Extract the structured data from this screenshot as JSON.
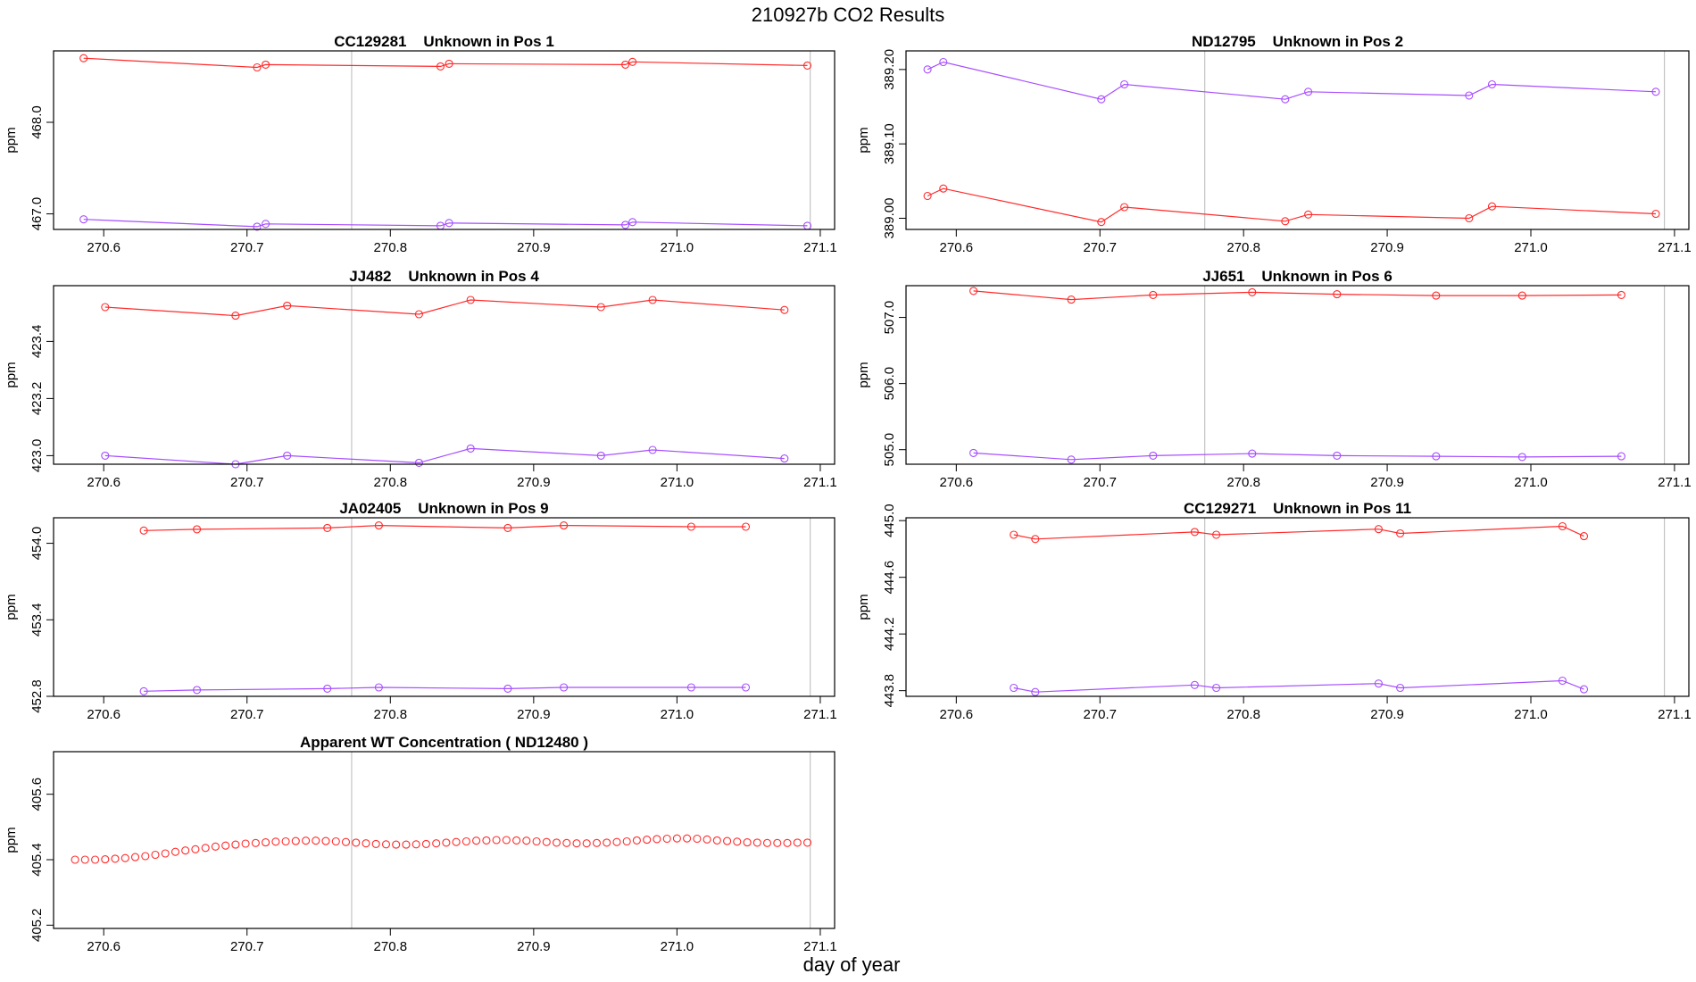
{
  "title": "210927b  CO2 Results",
  "xlabel": "day of year",
  "colors": {
    "series1": "#ff2a2a",
    "series2": "#a64dff",
    "vline": "#b8b8b8",
    "axis": "#000000"
  },
  "chart_data": [
    {
      "type": "line",
      "title": "CC129281    Unknown in Pos 1",
      "ylabel": "ppm",
      "xlim": [
        270.565,
        271.11
      ],
      "ylim": [
        466.83,
        468.78
      ],
      "xticks": [
        270.6,
        270.7,
        270.8,
        270.9,
        271.0,
        271.1
      ],
      "xtick_labels": [
        "270.6",
        "270.7",
        "270.8",
        "270.9",
        "271.0",
        "271.1"
      ],
      "yticks": [
        467.0,
        468.0
      ],
      "ytick_labels": [
        "467.0",
        "468.0"
      ],
      "vlines": [
        270.773,
        271.093
      ],
      "series": [
        {
          "color": "#ff2a2a",
          "x": [
            270.586,
            270.707,
            270.713,
            270.835,
            270.841,
            270.964,
            270.969,
            271.091
          ],
          "y": [
            468.7,
            468.6,
            468.63,
            468.61,
            468.64,
            468.63,
            468.66,
            468.62
          ]
        },
        {
          "color": "#a64dff",
          "x": [
            270.586,
            270.707,
            270.713,
            270.835,
            270.841,
            270.964,
            270.969,
            271.091
          ],
          "y": [
            466.94,
            466.86,
            466.89,
            466.87,
            466.9,
            466.88,
            466.91,
            466.87
          ]
        }
      ]
    },
    {
      "type": "line",
      "title": "ND12795    Unknown in Pos 2",
      "ylabel": "ppm",
      "xlim": [
        270.565,
        271.11
      ],
      "ylim": [
        388.985,
        389.225
      ],
      "xticks": [
        270.6,
        270.7,
        270.8,
        270.9,
        271.0,
        271.1
      ],
      "xtick_labels": [
        "270.6",
        "270.7",
        "270.8",
        "270.9",
        "271.0",
        "271.1"
      ],
      "yticks": [
        389.0,
        389.1,
        389.2
      ],
      "ytick_labels": [
        "389.00",
        "389.10",
        "389.20"
      ],
      "vlines": [
        270.773,
        271.093
      ],
      "series": [
        {
          "color": "#a64dff",
          "x": [
            270.58,
            270.591,
            270.701,
            270.717,
            270.829,
            270.845,
            270.957,
            270.973,
            271.087
          ],
          "y": [
            389.2,
            389.21,
            389.16,
            389.18,
            389.16,
            389.17,
            389.165,
            389.18,
            389.17
          ]
        },
        {
          "color": "#ff2a2a",
          "x": [
            270.58,
            270.591,
            270.701,
            270.717,
            270.829,
            270.845,
            270.957,
            270.973,
            271.087
          ],
          "y": [
            389.03,
            389.04,
            388.995,
            389.015,
            388.996,
            389.005,
            389.0,
            389.016,
            389.006
          ]
        }
      ]
    },
    {
      "type": "line",
      "title": "JJ482    Unknown in Pos 4",
      "ylabel": "ppm",
      "xlim": [
        270.565,
        271.11
      ],
      "ylim": [
        422.97,
        423.595
      ],
      "xticks": [
        270.6,
        270.7,
        270.8,
        270.9,
        271.0,
        271.1
      ],
      "xtick_labels": [
        "270.6",
        "270.7",
        "270.8",
        "270.9",
        "271.0",
        "271.1"
      ],
      "yticks": [
        423.0,
        423.2,
        423.4
      ],
      "ytick_labels": [
        "423.0",
        "423.2",
        "423.4"
      ],
      "vlines": [
        270.773
      ],
      "series": [
        {
          "color": "#ff2a2a",
          "x": [
            270.601,
            270.692,
            270.728,
            270.82,
            270.856,
            270.947,
            270.983,
            271.075
          ],
          "y": [
            423.52,
            423.49,
            423.525,
            423.495,
            423.545,
            423.52,
            423.545,
            423.51
          ]
        },
        {
          "color": "#a64dff",
          "x": [
            270.601,
            270.692,
            270.728,
            270.82,
            270.856,
            270.947,
            270.983,
            271.075
          ],
          "y": [
            423.0,
            422.97,
            423.0,
            422.975,
            423.025,
            423.0,
            423.02,
            422.99
          ]
        }
      ]
    },
    {
      "type": "line",
      "title": "JJ651    Unknown in Pos 6",
      "ylabel": "ppm",
      "xlim": [
        270.565,
        271.11
      ],
      "ylim": [
        504.78,
        507.48
      ],
      "xticks": [
        270.6,
        270.7,
        270.8,
        270.9,
        271.0,
        271.1
      ],
      "xtick_labels": [
        "270.6",
        "270.7",
        "270.8",
        "270.9",
        "271.0",
        "271.1"
      ],
      "yticks": [
        505.0,
        506.0,
        507.0
      ],
      "ytick_labels": [
        "505.0",
        "506.0",
        "507.0"
      ],
      "vlines": [
        270.773,
        271.093
      ],
      "series": [
        {
          "color": "#ff2a2a",
          "x": [
            270.612,
            270.68,
            270.737,
            270.806,
            270.865,
            270.934,
            270.994,
            271.063
          ],
          "y": [
            507.4,
            507.27,
            507.34,
            507.38,
            507.35,
            507.33,
            507.33,
            507.34
          ]
        },
        {
          "color": "#a64dff",
          "x": [
            270.612,
            270.68,
            270.737,
            270.806,
            270.865,
            270.934,
            270.994,
            271.063
          ],
          "y": [
            504.95,
            504.85,
            504.91,
            504.94,
            504.91,
            504.9,
            504.89,
            504.9
          ]
        }
      ]
    },
    {
      "type": "line",
      "title": "JA02405    Unknown in Pos 9",
      "ylabel": "ppm",
      "xlim": [
        270.565,
        271.11
      ],
      "ylim": [
        452.8,
        454.2
      ],
      "xticks": [
        270.6,
        270.7,
        270.8,
        270.9,
        271.0,
        271.1
      ],
      "xtick_labels": [
        "270.6",
        "270.7",
        "270.8",
        "270.9",
        "271.0",
        "271.1"
      ],
      "yticks": [
        452.8,
        453.4,
        454.0
      ],
      "ytick_labels": [
        "452.8",
        "453.4",
        "454.0"
      ],
      "vlines": [
        270.773,
        271.093
      ],
      "series": [
        {
          "color": "#ff2a2a",
          "x": [
            270.628,
            270.665,
            270.756,
            270.792,
            270.882,
            270.921,
            271.01,
            271.048
          ],
          "y": [
            454.1,
            454.11,
            454.12,
            454.14,
            454.12,
            454.14,
            454.13,
            454.13
          ]
        },
        {
          "color": "#a64dff",
          "x": [
            270.628,
            270.665,
            270.756,
            270.792,
            270.882,
            270.921,
            271.01,
            271.048
          ],
          "y": [
            452.84,
            452.85,
            452.86,
            452.87,
            452.86,
            452.87,
            452.87,
            452.87
          ]
        }
      ]
    },
    {
      "type": "line",
      "title": "CC129271    Unknown in Pos 11",
      "ylabel": "ppm",
      "xlim": [
        270.565,
        271.11
      ],
      "ylim": [
        443.76,
        445.02
      ],
      "xticks": [
        270.6,
        270.7,
        270.8,
        270.9,
        271.0,
        271.1
      ],
      "xtick_labels": [
        "270.6",
        "270.7",
        "270.8",
        "270.9",
        "271.0",
        "271.1"
      ],
      "yticks": [
        443.8,
        444.2,
        444.6,
        445.0
      ],
      "ytick_labels": [
        "443.8",
        "444.2",
        "444.6",
        "445.0"
      ],
      "vlines": [
        270.773,
        271.093
      ],
      "series": [
        {
          "color": "#ff2a2a",
          "x": [
            270.64,
            270.655,
            270.766,
            270.781,
            270.894,
            270.909,
            271.022,
            271.037
          ],
          "y": [
            444.9,
            444.87,
            444.92,
            444.9,
            444.94,
            444.91,
            444.96,
            444.89
          ]
        },
        {
          "color": "#a64dff",
          "x": [
            270.64,
            270.655,
            270.766,
            270.781,
            270.894,
            270.909,
            271.022,
            271.037
          ],
          "y": [
            443.82,
            443.79,
            443.84,
            443.82,
            443.85,
            443.82,
            443.87,
            443.81
          ]
        }
      ]
    },
    {
      "type": "scatter",
      "title": "Apparent WT Concentration ( ND12480 )",
      "ylabel": "ppm",
      "xlim": [
        270.565,
        271.11
      ],
      "ylim": [
        405.19,
        405.73
      ],
      "xticks": [
        270.6,
        270.7,
        270.8,
        270.9,
        271.0,
        271.1
      ],
      "xtick_labels": [
        "270.6",
        "270.7",
        "270.8",
        "270.9",
        "271.0",
        "271.1"
      ],
      "yticks": [
        405.2,
        405.4,
        405.6
      ],
      "ytick_labels": [
        "405.2",
        "405.4",
        "405.6"
      ],
      "vlines": [
        270.773,
        271.093
      ],
      "series": [
        {
          "color": "#ff2a2a",
          "x": [
            270.58,
            270.587,
            270.594,
            270.601,
            270.608,
            270.615,
            270.622,
            270.629,
            270.636,
            270.643,
            270.65,
            270.657,
            270.664,
            270.671,
            270.678,
            270.685,
            270.692,
            270.699,
            270.706,
            270.713,
            270.72,
            270.727,
            270.734,
            270.741,
            270.748,
            270.755,
            270.762,
            270.769,
            270.776,
            270.783,
            270.79,
            270.797,
            270.804,
            270.811,
            270.818,
            270.825,
            270.832,
            270.839,
            270.846,
            270.853,
            270.86,
            270.867,
            270.874,
            270.881,
            270.888,
            270.895,
            270.902,
            270.909,
            270.916,
            270.923,
            270.93,
            270.937,
            270.944,
            270.951,
            270.958,
            270.965,
            270.972,
            270.979,
            270.986,
            270.993,
            271.0,
            271.007,
            271.014,
            271.021,
            271.028,
            271.035,
            271.042,
            271.049,
            271.056,
            271.063,
            271.07,
            271.077,
            271.084,
            271.091
          ],
          "y": [
            405.4,
            405.4,
            405.4,
            405.401,
            405.403,
            405.405,
            405.408,
            405.411,
            405.415,
            405.419,
            405.424,
            405.428,
            405.432,
            405.436,
            405.44,
            405.443,
            405.446,
            405.449,
            405.451,
            405.453,
            405.455,
            405.456,
            405.457,
            405.458,
            405.458,
            405.457,
            405.456,
            405.454,
            405.452,
            405.45,
            405.448,
            405.447,
            405.446,
            405.446,
            405.447,
            405.448,
            405.45,
            405.452,
            405.454,
            405.456,
            405.458,
            405.459,
            405.46,
            405.46,
            405.459,
            405.458,
            405.456,
            405.454,
            405.452,
            405.451,
            405.45,
            405.45,
            405.451,
            405.452,
            405.454,
            405.456,
            405.459,
            405.461,
            405.463,
            405.464,
            405.465,
            405.465,
            405.464,
            405.462,
            405.459,
            405.457,
            405.455,
            405.453,
            405.452,
            405.451,
            405.451,
            405.451,
            405.452,
            405.452
          ]
        }
      ]
    }
  ]
}
